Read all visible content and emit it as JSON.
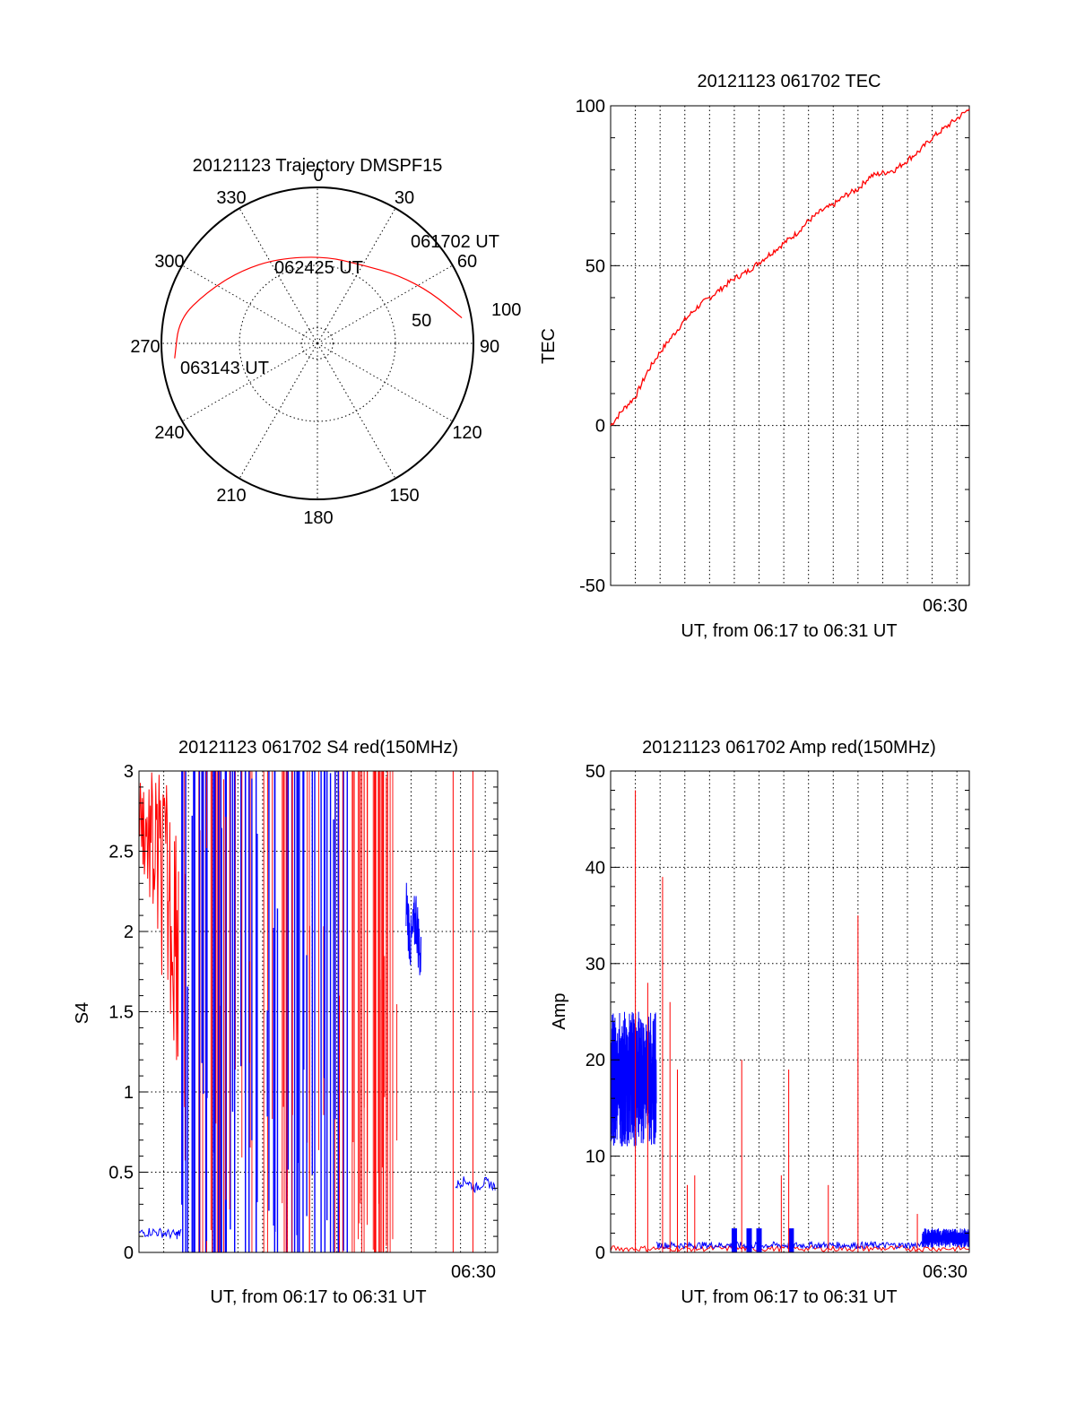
{
  "chart_data": [
    {
      "type": "polar",
      "title": "20121123 Trajectory DMSPF15",
      "azimuth_labels": [
        "0",
        "30",
        "60",
        "90",
        "120",
        "150",
        "180",
        "210",
        "240",
        "270",
        "300",
        "330"
      ],
      "radial_labels": [
        "50",
        "100"
      ],
      "radial_max": 100,
      "grid": true,
      "series": [
        {
          "color": "#ff0000",
          "points": [
            {
              "az": 80,
              "r": 94
            },
            {
              "az": 66,
              "r": 80
            },
            {
              "az": 50,
              "r": 68
            },
            {
              "az": 30,
              "r": 58
            },
            {
              "az": 5,
              "r": 56
            },
            {
              "az": -25,
              "r": 60
            },
            {
              "az": -47,
              "r": 68
            },
            {
              "az": -65,
              "r": 78
            },
            {
              "az": -80,
              "r": 90
            },
            {
              "az": -96,
              "r": 92
            }
          ]
        }
      ],
      "annotations": [
        "061702 UT",
        "062425 UT",
        "063143 UT"
      ]
    },
    {
      "type": "line",
      "title": "20121123 061702 TEC",
      "xlabel": "UT, from 06:17 to 06:31 UT",
      "ylabel": "TEC",
      "x_tick_label": "06:30",
      "xlim": [
        0,
        14.5
      ],
      "ylim": [
        -50,
        100
      ],
      "y_ticks": [
        "-50",
        "0",
        "50",
        "100"
      ],
      "grid": true,
      "series": [
        {
          "color": "#ff0000",
          "x": [
            0,
            0.5,
            1,
            1.5,
            2,
            2.5,
            3,
            3.5,
            4,
            4.5,
            5,
            5.5,
            6,
            6.5,
            7,
            7.5,
            8,
            8.5,
            9,
            9.5,
            10,
            10.5,
            11,
            11.5,
            12,
            12.5,
            13,
            13.5,
            14,
            14.5
          ],
          "y": [
            0,
            5,
            9,
            17,
            23,
            28,
            33,
            37,
            40,
            43,
            46,
            48,
            51,
            54,
            57,
            60,
            64,
            67,
            69,
            72,
            74,
            78,
            79,
            80,
            83,
            86,
            90,
            93,
            96,
            99
          ]
        }
      ]
    },
    {
      "type": "line",
      "title": "20121123 061702 S4 red(150MHz)",
      "xlabel": "UT, from 06:17 to 06:31 UT",
      "ylabel": "S4",
      "x_tick_label": "06:30",
      "xlim": [
        0,
        14.5
      ],
      "ylim": [
        0,
        3
      ],
      "y_ticks": [
        "0",
        "0.5",
        "1",
        "1.5",
        "2",
        "2.5",
        "3"
      ],
      "grid": true,
      "series": [
        {
          "color": "#ff0000",
          "x": [
            0,
            0.2,
            0.4,
            0.6,
            0.8,
            1,
            1.2,
            1.4,
            1.6
          ],
          "y": [
            3,
            2.6,
            2.8,
            2.2,
            2.9,
            2.4,
            2.0,
            2.7,
            1.8
          ]
        },
        {
          "color": "#0000ff",
          "x": [
            0,
            0.5,
            1,
            1.5,
            1.7
          ],
          "y": [
            0.12,
            0.13,
            0.12,
            0.11,
            0.12
          ]
        },
        {
          "color": "#0000ff",
          "x": [
            10.8,
            11,
            11.2,
            11.4
          ],
          "y": [
            2.2,
            1.9,
            2.1,
            1.8
          ]
        },
        {
          "color": "#0000ff",
          "x": [
            12.8,
            13.2,
            13.6,
            14,
            14.4
          ],
          "y": [
            0.42,
            0.45,
            0.4,
            0.44,
            0.41
          ]
        }
      ],
      "dense_band": {
        "x_start": 1.7,
        "x_end": 10.5
      }
    },
    {
      "type": "line",
      "title": "20121123 061702 Amp red(150MHz)",
      "xlabel": "UT, from 06:17 to 06:31 UT",
      "ylabel": "Amp",
      "x_tick_label": "06:30",
      "xlim": [
        0,
        14.5
      ],
      "ylim": [
        0,
        50
      ],
      "y_ticks": [
        "0",
        "10",
        "20",
        "30",
        "40",
        "50"
      ],
      "grid": true,
      "series": [
        {
          "color": "#0000ff",
          "name": "",
          "band": {
            "x_start": 0,
            "x_end": 1.85,
            "low": 11,
            "high": 25
          }
        },
        {
          "color": "#ff0000",
          "name": "",
          "spikes": [
            {
              "x": 1.0,
              "y": 48
            },
            {
              "x": 1.5,
              "y": 28
            },
            {
              "x": 2.1,
              "y": 39
            },
            {
              "x": 2.4,
              "y": 26
            },
            {
              "x": 2.7,
              "y": 19
            },
            {
              "x": 3.4,
              "y": 8
            },
            {
              "x": 3.1,
              "y": 7
            },
            {
              "x": 5.3,
              "y": 20
            },
            {
              "x": 7.2,
              "y": 19
            },
            {
              "x": 6.9,
              "y": 8
            },
            {
              "x": 8.8,
              "y": 7
            },
            {
              "x": 10.0,
              "y": 35
            },
            {
              "x": 12.4,
              "y": 4
            }
          ]
        },
        {
          "color": "#0000ff",
          "name": "",
          "band": {
            "x_start": 12.6,
            "x_end": 14.5,
            "low": 0.5,
            "high": 2.5
          }
        }
      ]
    }
  ]
}
